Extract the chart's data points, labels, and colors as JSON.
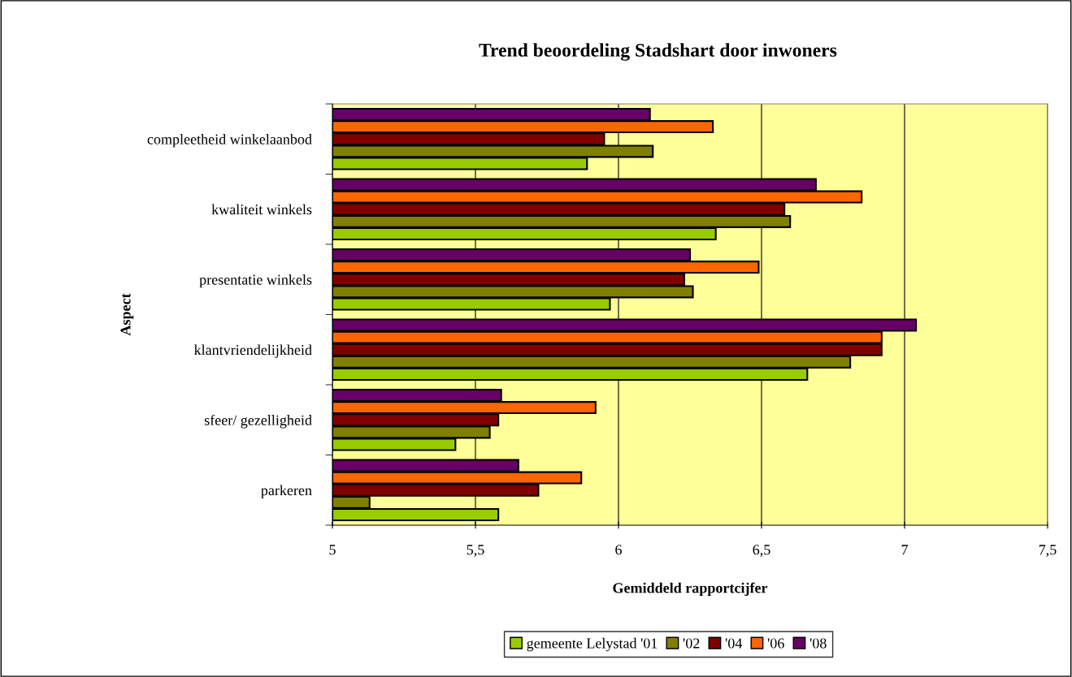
{
  "chart_data": {
    "type": "bar",
    "orientation": "horizontal",
    "title": "Trend beoordeling Stadshart door inwoners",
    "xlabel": "Gemiddeld rapportcijfer",
    "ylabel": "Aspect",
    "categories": [
      "compleetheid winkelaanbod",
      "kwaliteit winkels",
      "presentatie winkels",
      "klantvriendelijkheid",
      "sfeer/ gezelligheid",
      "parkeren"
    ],
    "series": [
      {
        "name": "gemeente Lelystad '01",
        "color": "#99cc00",
        "values": [
          5.89,
          6.34,
          5.97,
          6.66,
          5.43,
          5.58
        ]
      },
      {
        "name": "'02",
        "color": "#808000",
        "values": [
          6.12,
          6.6,
          6.26,
          6.81,
          5.55,
          5.13
        ]
      },
      {
        "name": "'04",
        "color": "#800000",
        "values": [
          5.95,
          6.58,
          6.23,
          6.92,
          5.58,
          5.72
        ]
      },
      {
        "name": "'06",
        "color": "#ff6600",
        "values": [
          6.33,
          6.85,
          6.49,
          6.92,
          5.92,
          5.87
        ]
      },
      {
        "name": "'08",
        "color": "#660066",
        "values": [
          6.11,
          6.69,
          6.25,
          7.04,
          5.59,
          5.65
        ]
      }
    ],
    "xlim": [
      5,
      7.5
    ],
    "xticks": [
      5,
      {
        "value": 5.5,
        "label": "5,5"
      },
      6,
      {
        "value": 6.5,
        "label": "6,5"
      },
      7,
      {
        "value": 7.5,
        "label": "7,5"
      }
    ],
    "grid": "x",
    "legend": "bottom"
  }
}
